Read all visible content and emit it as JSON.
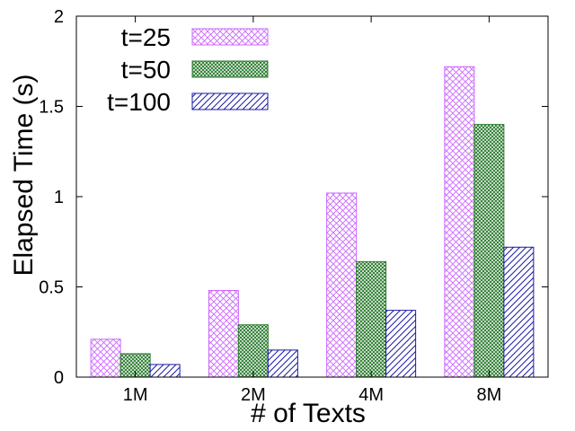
{
  "chart_data": {
    "type": "bar",
    "xlabel": "# of Texts",
    "ylabel": "Elapsed Time (s)",
    "categories": [
      "1M",
      "2M",
      "4M",
      "8M"
    ],
    "ylim": [
      0,
      2
    ],
    "yticks": [
      "0",
      "0.5",
      "1",
      "1.5",
      "2"
    ],
    "legend_position": "top-left",
    "grid": false,
    "series": [
      {
        "name": "t=25",
        "values": [
          0.21,
          0.48,
          1.02,
          1.72
        ],
        "color": "#cc66ff",
        "pattern": "crosshatch"
      },
      {
        "name": "t=50",
        "values": [
          0.13,
          0.29,
          0.64,
          1.4
        ],
        "color": "#2e7d32",
        "pattern": "dense-crosshatch"
      },
      {
        "name": "t=100",
        "values": [
          0.07,
          0.15,
          0.37,
          0.72
        ],
        "color": "#1a1aa6",
        "pattern": "diagonal"
      }
    ]
  }
}
